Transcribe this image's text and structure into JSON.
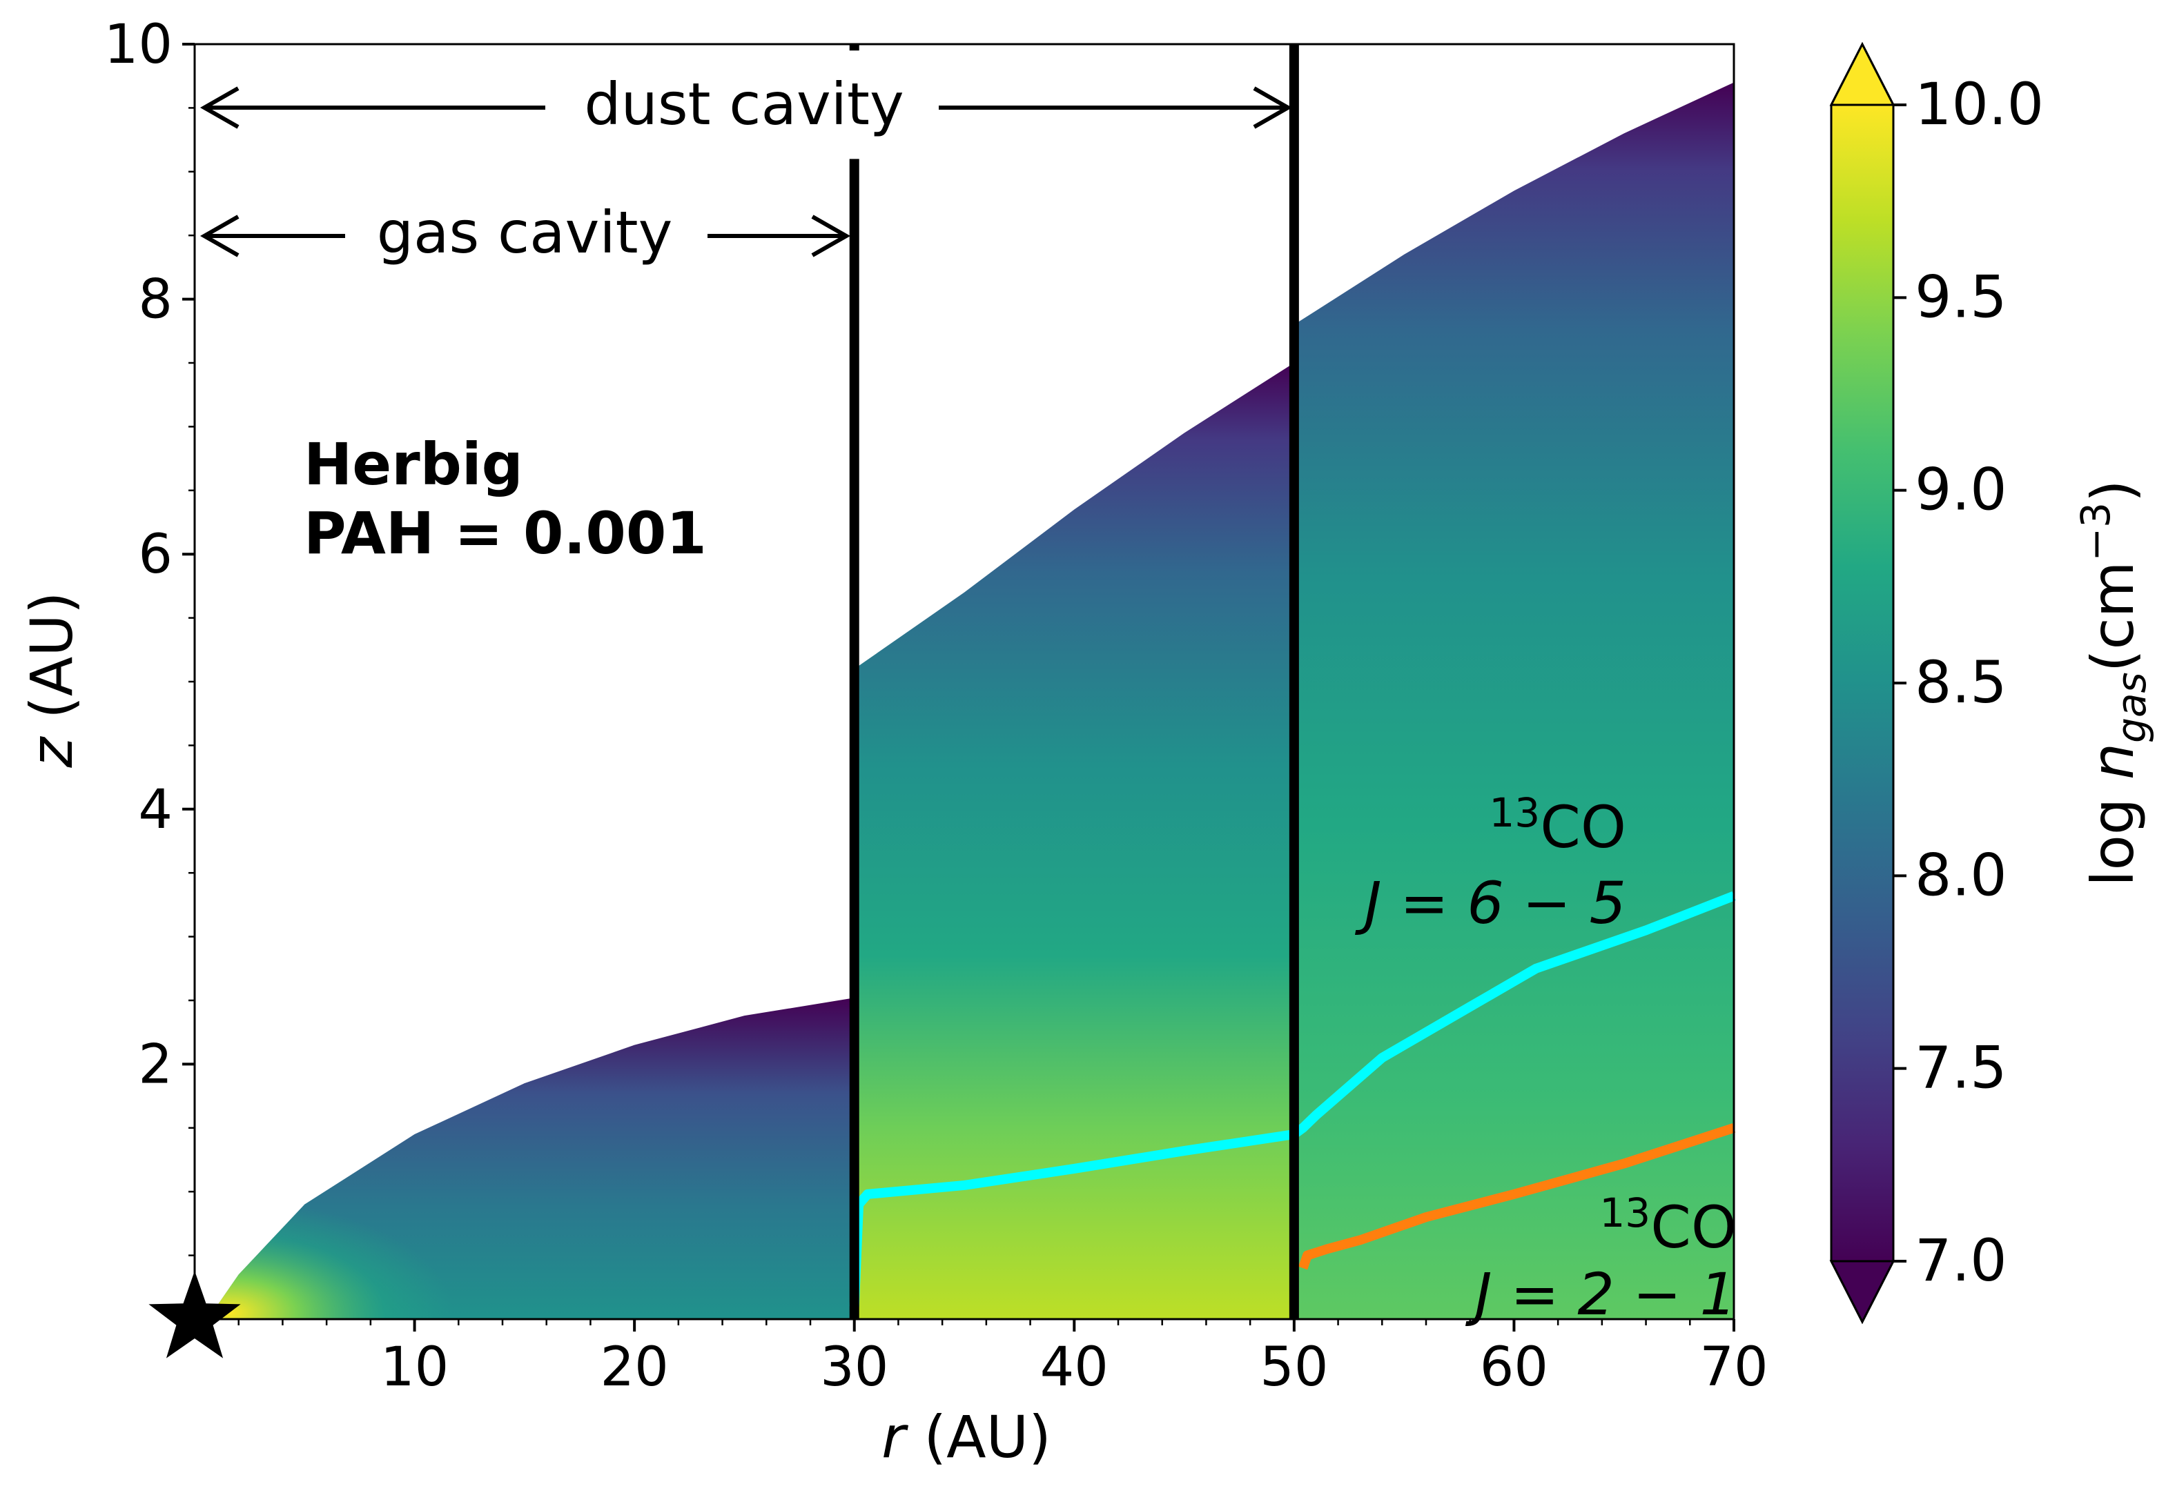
{
  "chart_data": {
    "type": "heatmap",
    "xlabel": {
      "italic": "r",
      "rest": " (AU)"
    },
    "ylabel": {
      "italic": "z",
      "rest": " (AU)"
    },
    "xlim": [
      0,
      70
    ],
    "ylim": [
      0,
      10
    ],
    "xticks": [
      10,
      20,
      30,
      40,
      50,
      60,
      70
    ],
    "yticks": [
      2,
      4,
      6,
      8,
      10
    ],
    "colorbar": {
      "label_prefix": "log ",
      "label_var": "n",
      "label_sub": "gas",
      "label_unit": "(cm",
      "label_exp": "−3",
      "label_close": ")",
      "range": [
        7.0,
        10.0
      ],
      "ticks": [
        "7.0",
        "7.5",
        "8.0",
        "8.5",
        "9.0",
        "9.5",
        "10.0"
      ],
      "colormap": "viridis",
      "extend": "both"
    },
    "disk_surface": {
      "inner_r": [
        1,
        2,
        5,
        10,
        15,
        20,
        25,
        30
      ],
      "inner_z": [
        0.1,
        0.35,
        0.9,
        1.45,
        1.85,
        2.15,
        2.38,
        2.52
      ],
      "middle_r": [
        30,
        35,
        40,
        45,
        50
      ],
      "middle_z": [
        5.1,
        5.7,
        6.35,
        6.95,
        7.5
      ],
      "outer_r": [
        50,
        55,
        60,
        65,
        70
      ],
      "outer_z": [
        7.8,
        8.35,
        8.85,
        9.3,
        9.7
      ]
    },
    "vertical_lines": [
      30,
      50
    ],
    "series": [
      {
        "name_sup": "13",
        "name_mol": "CO",
        "transition": "J = 6 − 5",
        "color": "#00ffff",
        "r": [
          30,
          30.2,
          30.6,
          35,
          40,
          45,
          50,
          50.4,
          51,
          54,
          58,
          61,
          66,
          70
        ],
        "z": [
          0.1,
          0.9,
          0.98,
          1.05,
          1.18,
          1.32,
          1.45,
          1.5,
          1.6,
          2.05,
          2.45,
          2.75,
          3.05,
          3.32
        ]
      },
      {
        "name_sup": "13",
        "name_mol": "CO",
        "transition": "J = 2 − 1",
        "color": "#ff7f0e",
        "r": [
          50.4,
          50.6,
          51.5,
          53,
          56,
          60,
          65,
          70
        ],
        "z": [
          0.4,
          0.5,
          0.55,
          0.62,
          0.8,
          0.98,
          1.22,
          1.5
        ]
      }
    ],
    "annotations": {
      "dust_cavity": "dust cavity",
      "gas_cavity": "gas cavity",
      "model_line1": "Herbig",
      "model_line2": "PAH = 0.001"
    }
  }
}
